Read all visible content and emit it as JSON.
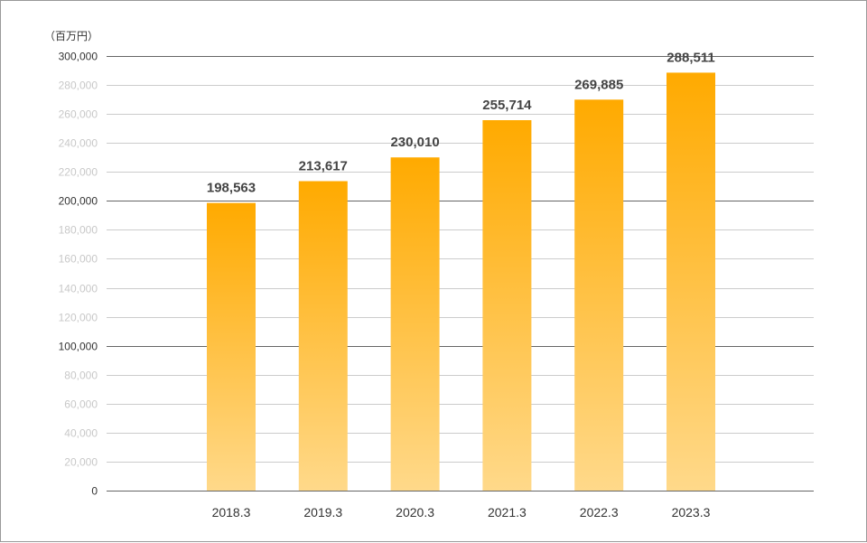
{
  "chart_data": {
    "type": "bar",
    "unit_label": "（百万円）",
    "categories": [
      "2018.3",
      "2019.3",
      "2020.3",
      "2021.3",
      "2022.3",
      "2023.3"
    ],
    "values": [
      198563,
      213617,
      230010,
      255714,
      269885,
      288511
    ],
    "value_labels": [
      "198,563",
      "213,617",
      "230,010",
      "255,714",
      "269,885",
      "288,511"
    ],
    "ylim": [
      0,
      300000
    ],
    "y_ticks": [
      0,
      20000,
      40000,
      60000,
      80000,
      100000,
      120000,
      140000,
      160000,
      180000,
      200000,
      220000,
      240000,
      260000,
      280000,
      300000
    ],
    "y_tick_labels": [
      "0",
      "20,000",
      "40,000",
      "60,000",
      "80,000",
      "100,000",
      "120,000",
      "140,000",
      "160,000",
      "180,000",
      "200,000",
      "220,000",
      "240,000",
      "260,000",
      "280,000",
      "300,000"
    ],
    "major_ticks": [
      0,
      100000,
      200000,
      300000
    ],
    "grid": true,
    "legend": "none",
    "colors": {
      "bar_top": "#FFAA00",
      "bar_bottom": "#FFD98A",
      "grid_major": "#666666",
      "grid_minor": "#cccccc"
    }
  }
}
